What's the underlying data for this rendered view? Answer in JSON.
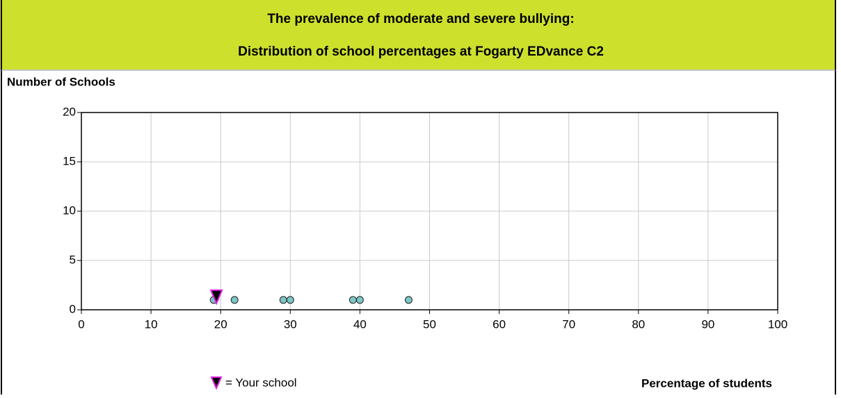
{
  "chart_data": {
    "type": "scatter",
    "title": [
      "The prevalence of moderate and severe bullying:",
      "Distribution of school percentages at Fogarty EDvance C2"
    ],
    "y_label": "Number of Schools",
    "x_label": "Percentage of students",
    "series": [
      {
        "color": "#7cc6c6",
        "x": [
          19,
          22,
          29,
          30,
          39,
          40,
          47
        ],
        "y": [
          1,
          1,
          1,
          1,
          1,
          1,
          1
        ]
      }
    ],
    "your_school": {
      "x": 19.4,
      "y": 1,
      "color": "#e020e0",
      "legend": "= Your school"
    },
    "xlim": [
      0,
      100
    ],
    "xticks": [
      0,
      10,
      20,
      30,
      40,
      50,
      60,
      70,
      80,
      90,
      100
    ],
    "ylim": [
      0,
      20
    ],
    "yticks": [
      0,
      5,
      10,
      15,
      20
    ],
    "grid": true
  }
}
